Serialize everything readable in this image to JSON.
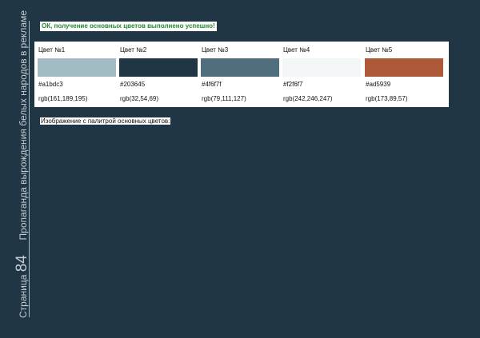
{
  "sidebar": {
    "page_word": "Страница",
    "page_number": "84",
    "title": "Пропаганда вырождения белых народов в рекламе"
  },
  "status": {
    "message": "ОК, получение основных цветов выполнено успешно!"
  },
  "colors": [
    {
      "name": "Цвет №1",
      "hex": "#a1bdc3",
      "rgb": "rgb(161,189,195)"
    },
    {
      "name": "Цвет №2",
      "hex": "#203645",
      "rgb": "rgb(32,54,69)"
    },
    {
      "name": "Цвет №3",
      "hex": "#4f6f7f",
      "rgb": "rgb(79,111,127)"
    },
    {
      "name": "Цвет №4",
      "hex": "#f2f6f7",
      "rgb": "rgb(242,246,247)"
    },
    {
      "name": "Цвет №5",
      "hex": "#ad5939",
      "rgb": "rgb(173,89,57)"
    }
  ],
  "palette_caption": "Изображение с палитрой основных цветов:"
}
